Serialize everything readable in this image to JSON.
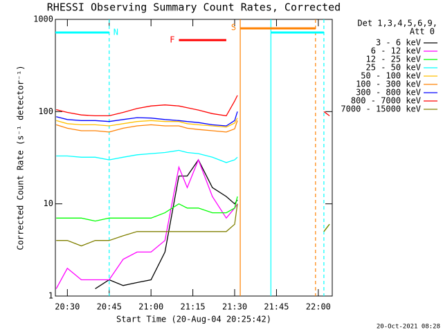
{
  "chart_data": {
    "type": "line",
    "title": "RHESSI Observing Summary Count Rates, Corrected",
    "x_label": "Start Time (20-Aug-04 20:25:42)",
    "y_label": "Corrected Count Rate (s⁻¹ detector⁻¹)",
    "legend_title": [
      "Det 1,3,4,5,6,9,",
      "Att 0"
    ],
    "footer": "20-Oct-2021 08:28",
    "ylog": true,
    "legend": "right",
    "xlim": [
      "20:25:42",
      "22:05"
    ],
    "xticks": [
      "20:30",
      "20:45",
      "21:00",
      "21:15",
      "21:30",
      "21:45",
      "22:00"
    ],
    "ylim": [
      1,
      1000
    ],
    "yticks": [
      1,
      10,
      100,
      1000
    ],
    "x": [
      "20:26",
      "20:30",
      "20:35",
      "20:40",
      "20:45",
      "20:50",
      "20:55",
      "21:00",
      "21:05",
      "21:10",
      "21:13",
      "21:17",
      "21:22",
      "21:27",
      "21:30",
      "21:31",
      "21:45",
      "22:02",
      "22:04"
    ],
    "series": [
      {
        "name": "3 - 6 keV",
        "color": "#000000",
        "values": [
          null,
          null,
          null,
          1.2,
          1.5,
          1.3,
          1.4,
          1.5,
          3,
          20,
          20,
          30,
          15,
          12,
          10,
          11,
          null,
          null,
          null
        ]
      },
      {
        "name": "6 - 12 keV",
        "color": "#ff00ff",
        "values": [
          1.2,
          2,
          1.5,
          1.5,
          1.5,
          2.5,
          3,
          3,
          4,
          25,
          15,
          30,
          12,
          7,
          9,
          10,
          null,
          null,
          null
        ]
      },
      {
        "name": "12 - 25 keV",
        "color": "#00ff00",
        "values": [
          7,
          7,
          7,
          6.5,
          7,
          7,
          7,
          7,
          8,
          10,
          9,
          9,
          8,
          8,
          9,
          12,
          null,
          5,
          6
        ]
      },
      {
        "name": "25 - 50 keV",
        "color": "#00ffff",
        "values": [
          33,
          33,
          32,
          32,
          30,
          32,
          34,
          35,
          36,
          38,
          36,
          35,
          32,
          28,
          30,
          32,
          null,
          null,
          null
        ]
      },
      {
        "name": "50 - 100 keV",
        "color": "#ffbf00",
        "values": [
          80,
          74,
          72,
          72,
          70,
          74,
          78,
          80,
          78,
          78,
          74,
          72,
          70,
          68,
          75,
          85,
          null,
          null,
          null
        ]
      },
      {
        "name": "100 - 300 keV",
        "color": "#ff8000",
        "values": [
          72,
          66,
          62,
          62,
          60,
          66,
          70,
          72,
          70,
          70,
          66,
          64,
          62,
          60,
          65,
          80,
          null,
          null,
          null
        ]
      },
      {
        "name": "300 - 800 keV",
        "color": "#0000ff",
        "values": [
          88,
          82,
          80,
          80,
          78,
          82,
          86,
          85,
          82,
          80,
          78,
          76,
          72,
          70,
          80,
          100,
          null,
          null,
          null
        ]
      },
      {
        "name": "800 - 7000 keV",
        "color": "#ff0000",
        "values": [
          105,
          98,
          92,
          90,
          90,
          98,
          108,
          115,
          118,
          115,
          110,
          104,
          95,
          90,
          130,
          150,
          null,
          100,
          90
        ]
      },
      {
        "name": "7000 - 15000 keV",
        "color": "#808000",
        "values": [
          4,
          4,
          3.5,
          4,
          4,
          4.5,
          5,
          5,
          5,
          5,
          5,
          5,
          5,
          5,
          6,
          10,
          null,
          5,
          6
        ]
      }
    ],
    "flags": [
      {
        "label": "N",
        "color": "#00ffff",
        "spans": [
          [
            "20:25:42",
            "20:45"
          ],
          [
            "21:43",
            "22:02"
          ]
        ]
      },
      {
        "label": "F",
        "color": "#ff0000",
        "spans": [
          [
            "21:10",
            "21:27"
          ]
        ]
      },
      {
        "label": "S",
        "color": "#ff8000",
        "spans": [
          [
            "21:32",
            "21:59"
          ]
        ]
      }
    ],
    "markers": [
      {
        "x": "20:45",
        "color": "#00ffff",
        "dashed": true
      },
      {
        "x": "21:32",
        "color": "#ff8000",
        "dashed": false
      },
      {
        "x": "21:43",
        "color": "#00ffff",
        "dashed": false
      },
      {
        "x": "21:59",
        "color": "#ff8000",
        "dashed": true
      },
      {
        "x": "22:02",
        "color": "#00ffff",
        "dashed": true
      }
    ]
  }
}
